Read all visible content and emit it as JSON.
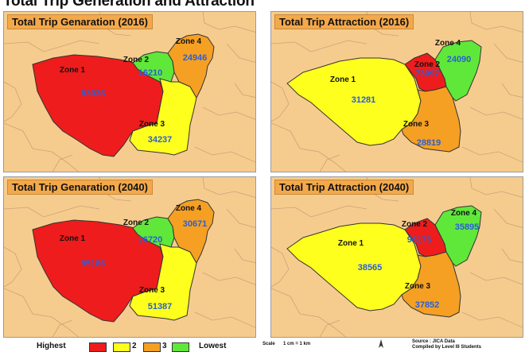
{
  "page_title": "Total Trip Generation and Attraction",
  "colors": {
    "background": "#f6cc8e",
    "title_box": "#f3a94b",
    "highest": "#ee1c1c",
    "second": "#ffff1e",
    "third": "#f5a023",
    "lowest": "#5fe83a",
    "value_text": "#2a5fd6"
  },
  "panels": [
    {
      "title": "Total Trip Genaration (2016)",
      "zones": [
        {
          "label": "Zone 1",
          "value": "83036",
          "color": "#ee1c1c"
        },
        {
          "label": "Zone 2",
          "value": "16210",
          "color": "#5fe83a"
        },
        {
          "label": "Zone 3",
          "value": "34237",
          "color": "#ffff1e"
        },
        {
          "label": "Zone 4",
          "value": "24946",
          "color": "#f5a023"
        }
      ]
    },
    {
      "title": "Total Trip Attraction (2016)",
      "zones": [
        {
          "label": "Zone 1",
          "value": "31281",
          "color": "#ffff1e"
        },
        {
          "label": "Zone 2",
          "value": "73097",
          "color": "#ee1c1c"
        },
        {
          "label": "Zone 3",
          "value": "28819",
          "color": "#f5a023"
        },
        {
          "label": "Zone 4",
          "value": "24090",
          "color": "#5fe83a"
        }
      ]
    },
    {
      "title": "Total Trip Genaration (2040)",
      "zones": [
        {
          "label": "Zone 1",
          "value": "95186",
          "color": "#ee1c1c"
        },
        {
          "label": "Zone 2",
          "value": "26720",
          "color": "#5fe83a"
        },
        {
          "label": "Zone 3",
          "value": "51387",
          "color": "#ffff1e"
        },
        {
          "label": "Zone 4",
          "value": "30671",
          "color": "#f5a023"
        }
      ]
    },
    {
      "title": "Total Trip Attraction (2040)",
      "zones": [
        {
          "label": "Zone 1",
          "value": "38565",
          "color": "#ffff1e"
        },
        {
          "label": "Zone 2",
          "value": "96176",
          "color": "#ee1c1c"
        },
        {
          "label": "Zone 3",
          "value": "37852",
          "color": "#f5a023"
        },
        {
          "label": "Zone 4",
          "value": "35895",
          "color": "#5fe83a"
        }
      ]
    }
  ],
  "legend": {
    "highest": "Highest",
    "lowest": "Lowest",
    "rank2": "2",
    "rank3": "3",
    "scale": "Scale",
    "scale_value": "1 cm = 1 km",
    "source": "Source : JICA Data",
    "compiled": "Compiled by Level III Students"
  }
}
